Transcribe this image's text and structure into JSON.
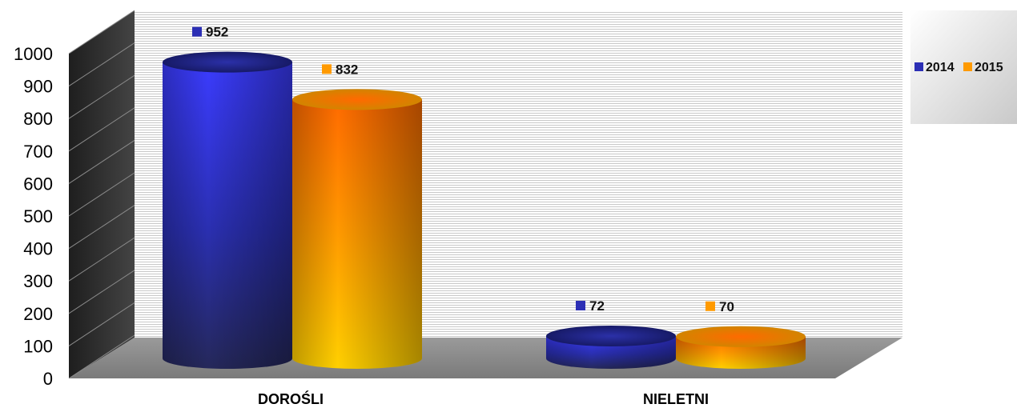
{
  "chart_data": {
    "type": "bar",
    "style": "3d-cylinder",
    "categories": [
      "DOROŚLI",
      "NIELETNI"
    ],
    "series": [
      {
        "name": "2014",
        "values": [
          952,
          72
        ],
        "color": "#3a3fe6"
      },
      {
        "name": "2015",
        "values": [
          832,
          70
        ],
        "color": "#ff9a00"
      }
    ],
    "ylim": [
      0,
      1000
    ],
    "yticks": [
      0,
      100,
      200,
      300,
      400,
      500,
      600,
      700,
      800,
      900,
      1000
    ],
    "grid": true,
    "legend": "right",
    "data_labels": true
  }
}
